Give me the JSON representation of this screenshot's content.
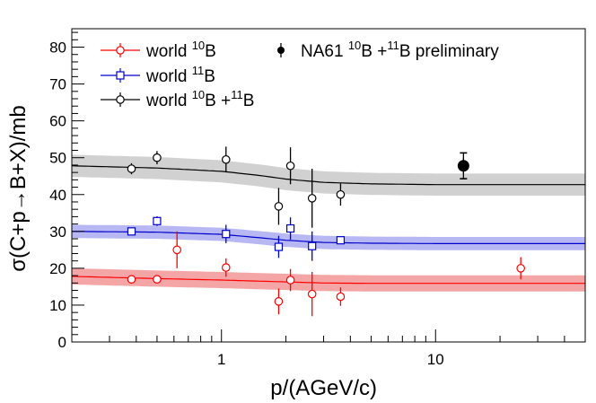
{
  "chart_data": {
    "type": "scatter",
    "title": "",
    "xlabel": "p/(AGeV/c)",
    "ylabel": "σ(C+p→B+X)/mb",
    "xscale": "log",
    "xlim": [
      0.2,
      50
    ],
    "ylim": [
      0,
      85
    ],
    "y_ticks": [
      0,
      10,
      20,
      30,
      40,
      50,
      60,
      70,
      80
    ],
    "x_tick_labels": [
      {
        "value": 1,
        "label": "1"
      },
      {
        "value": 10,
        "label": "10"
      }
    ],
    "legend": {
      "placement": "top-left",
      "entries": [
        {
          "series": "world10B",
          "text": "world ",
          "sup": "10",
          "tail": "B"
        },
        {
          "series": "world11B",
          "text": "world ",
          "sup": "11",
          "tail": "B"
        },
        {
          "series": "world10B11B",
          "text": "world ",
          "sup": "10",
          "mid": "B +",
          "sup2": "11",
          "tail": "B"
        },
        {
          "series": "na61",
          "text": "NA61 ",
          "sup": "10",
          "mid": "B +",
          "sup2": "11",
          "tail": "B preliminary"
        }
      ]
    },
    "series": [
      {
        "id": "world10B",
        "name": "world 10B",
        "color": "#ff0000",
        "band_color": "#f08080",
        "marker": "open-circle",
        "points": [
          {
            "x": 0.38,
            "y": 17.0,
            "err": 0.6
          },
          {
            "x": 0.5,
            "y": 17.0,
            "err": 0.6
          },
          {
            "x": 0.62,
            "y": 25.0,
            "err": 5.0
          },
          {
            "x": 1.05,
            "y": 20.2,
            "err": 2.5
          },
          {
            "x": 1.85,
            "y": 11.0,
            "err": 3.5
          },
          {
            "x": 2.1,
            "y": 16.8,
            "err": 3.0
          },
          {
            "x": 2.65,
            "y": 13.0,
            "err": 6.0
          },
          {
            "x": 3.6,
            "y": 12.3,
            "err": 2.5
          },
          {
            "x": 25.0,
            "y": 20.0,
            "err": 3.0
          }
        ],
        "model": {
          "x": [
            0.2,
            0.5,
            1,
            1.5,
            2,
            3,
            5,
            10,
            20,
            50
          ],
          "y": [
            17.8,
            17.2,
            16.8,
            16.5,
            16.3,
            16.0,
            15.9,
            15.9,
            15.9,
            15.9
          ],
          "band_halfwidth": 2.2
        }
      },
      {
        "id": "world11B",
        "name": "world 11B",
        "color": "#0000cc",
        "band_color": "#9999ee",
        "marker": "open-square",
        "points": [
          {
            "x": 0.38,
            "y": 30.0,
            "err": 0.8
          },
          {
            "x": 0.5,
            "y": 32.8,
            "err": 1.3
          },
          {
            "x": 1.05,
            "y": 29.3,
            "err": 2.5
          },
          {
            "x": 1.85,
            "y": 25.8,
            "err": 3.0
          },
          {
            "x": 2.1,
            "y": 30.8,
            "err": 3.0
          },
          {
            "x": 2.65,
            "y": 26.0,
            "err": 4.0
          },
          {
            "x": 3.6,
            "y": 27.6,
            "err": 1.0
          }
        ],
        "model": {
          "x": [
            0.2,
            0.5,
            1,
            1.5,
            2,
            3,
            5,
            10,
            20,
            50
          ],
          "y": [
            30.0,
            29.8,
            29.2,
            28.3,
            27.6,
            27.0,
            26.8,
            26.7,
            26.7,
            26.7
          ],
          "band_halfwidth": 1.8
        }
      },
      {
        "id": "world10B11B",
        "name": "world 10B +11B",
        "color": "#000000",
        "band_color": "#bdbdbd",
        "marker": "open-circle",
        "points": [
          {
            "x": 0.38,
            "y": 47.0,
            "err": 1.5
          },
          {
            "x": 0.5,
            "y": 50.0,
            "err": 1.8
          },
          {
            "x": 1.05,
            "y": 49.5,
            "err": 3.5
          },
          {
            "x": 1.85,
            "y": 36.8,
            "err": 5.0
          },
          {
            "x": 2.1,
            "y": 47.8,
            "err": 5.0
          },
          {
            "x": 2.65,
            "y": 39.0,
            "err": 8.0
          },
          {
            "x": 3.6,
            "y": 40.0,
            "err": 3.0
          }
        ],
        "model": {
          "x": [
            0.2,
            0.5,
            1,
            1.5,
            2,
            3,
            5,
            10,
            20,
            50
          ],
          "y": [
            47.8,
            47.2,
            46.3,
            45.2,
            44.2,
            43.3,
            42.9,
            42.7,
            42.7,
            42.7
          ],
          "band_halfwidth": 3.0
        }
      },
      {
        "id": "na61",
        "name": "NA61 10B +11B preliminary",
        "color": "#000000",
        "marker": "filled-circle",
        "points": [
          {
            "x": 13.5,
            "y": 47.8,
            "err": 2.2,
            "sys": 3.5
          }
        ]
      }
    ]
  }
}
